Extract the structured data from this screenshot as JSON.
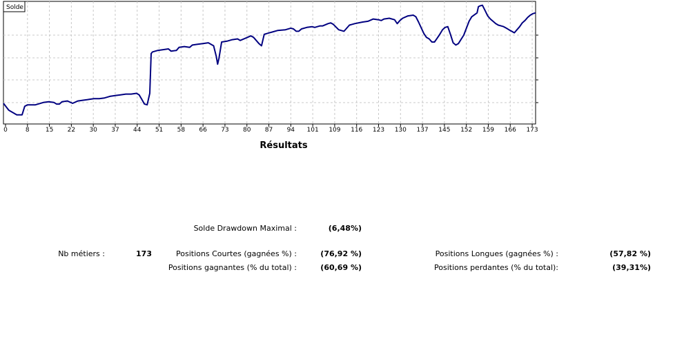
{
  "chart_data": {
    "type": "line",
    "series": [
      {
        "name": "Solde",
        "color": "#000080",
        "values": [
          [
            0,
            72
          ],
          [
            2,
            63
          ],
          [
            5,
            57
          ],
          [
            7,
            57
          ],
          [
            8,
            68
          ],
          [
            9,
            70
          ],
          [
            12,
            70
          ],
          [
            15,
            73
          ],
          [
            17,
            74
          ],
          [
            19,
            73
          ],
          [
            20,
            71
          ],
          [
            21,
            71
          ],
          [
            22,
            74
          ],
          [
            24,
            75
          ],
          [
            26,
            72
          ],
          [
            28,
            75
          ],
          [
            30,
            76
          ],
          [
            32,
            77
          ],
          [
            34,
            78
          ],
          [
            36,
            78
          ],
          [
            38,
            79
          ],
          [
            40,
            81
          ],
          [
            42,
            82
          ],
          [
            44,
            83
          ],
          [
            46,
            84
          ],
          [
            48,
            84
          ],
          [
            50,
            85
          ],
          [
            51,
            83
          ],
          [
            52,
            77
          ],
          [
            53,
            71
          ],
          [
            54,
            70
          ],
          [
            55,
            85
          ],
          [
            55.5,
            137
          ],
          [
            56,
            139
          ],
          [
            58,
            141
          ],
          [
            60,
            142
          ],
          [
            62,
            143
          ],
          [
            63,
            140
          ],
          [
            65,
            141
          ],
          [
            66,
            145
          ],
          [
            68,
            146
          ],
          [
            70,
            145
          ],
          [
            71,
            148
          ],
          [
            73,
            149
          ],
          [
            75,
            150
          ],
          [
            77,
            151
          ],
          [
            79,
            147
          ],
          [
            80,
            133
          ],
          [
            80.5,
            123
          ],
          [
            81,
            131
          ],
          [
            82,
            152
          ],
          [
            84,
            153
          ],
          [
            86,
            155
          ],
          [
            88,
            156
          ],
          [
            89,
            154
          ],
          [
            91,
            157
          ],
          [
            93,
            160
          ],
          [
            94,
            158
          ],
          [
            96,
            150
          ],
          [
            97,
            147
          ],
          [
            98,
            162
          ],
          [
            100,
            164
          ],
          [
            101,
            165
          ],
          [
            103,
            167
          ],
          [
            106,
            168
          ],
          [
            108,
            170
          ],
          [
            109,
            169
          ],
          [
            110,
            166
          ],
          [
            111,
            166
          ],
          [
            112,
            169
          ],
          [
            114,
            171
          ],
          [
            116,
            172
          ],
          [
            117,
            171
          ],
          [
            119,
            173
          ],
          [
            120,
            173
          ],
          [
            122,
            176
          ],
          [
            123,
            177
          ],
          [
            124,
            175
          ],
          [
            126,
            168
          ],
          [
            128,
            166
          ],
          [
            130,
            174
          ],
          [
            132,
            176
          ],
          [
            135,
            178
          ],
          [
            137,
            179
          ],
          [
            139,
            182
          ],
          [
            141,
            181
          ],
          [
            142,
            180
          ],
          [
            143,
            182
          ],
          [
            145,
            183
          ],
          [
            147,
            181
          ],
          [
            148,
            176
          ],
          [
            149,
            180
          ],
          [
            150,
            183
          ],
          [
            152,
            186
          ],
          [
            154,
            187
          ],
          [
            155,
            185
          ],
          [
            156,
            178
          ],
          [
            158,
            163
          ],
          [
            159,
            158
          ],
          [
            160,
            156
          ],
          [
            161,
            152
          ],
          [
            162,
            152
          ],
          [
            163,
            157
          ],
          [
            164,
            162
          ],
          [
            165,
            168
          ],
          [
            166,
            171
          ],
          [
            167,
            172
          ],
          [
            168,
            162
          ],
          [
            169,
            151
          ],
          [
            170,
            148
          ],
          [
            171,
            150
          ],
          [
            173,
            161
          ],
          [
            175,
            179
          ],
          [
            176,
            185
          ],
          [
            178,
            190
          ],
          [
            178.5,
            198
          ],
          [
            179,
            199
          ],
          [
            180,
            200
          ],
          [
            181,
            193
          ],
          [
            182,
            186
          ],
          [
            183,
            182
          ],
          [
            184,
            179
          ],
          [
            185,
            176
          ],
          [
            186,
            174
          ],
          [
            187,
            173
          ],
          [
            188,
            172
          ],
          [
            189,
            170
          ],
          [
            190,
            168
          ],
          [
            191,
            166
          ],
          [
            192,
            164
          ],
          [
            193,
            168
          ],
          [
            194,
            172
          ],
          [
            195,
            177
          ],
          [
            196,
            180
          ],
          [
            197,
            184
          ],
          [
            198,
            187
          ],
          [
            199,
            189
          ],
          [
            200,
            190
          ]
        ]
      }
    ],
    "x_ticks": [
      "0",
      "8",
      "15",
      "22",
      "30",
      "37",
      "44",
      "51",
      "58",
      "66",
      "73",
      "80",
      "87",
      "94",
      "101",
      "109",
      "116",
      "123",
      "130",
      "137",
      "145",
      "152",
      "159",
      "166",
      "173"
    ],
    "xlim": [
      0,
      200
    ],
    "ylim": [
      45,
      205
    ],
    "grid": true,
    "title": ""
  },
  "results": {
    "title": "Résultats",
    "max_drawdown_label": "Solde Drawdown Maximal :",
    "max_drawdown_value": "(6,48%)",
    "trades_label": "Nb métiers :",
    "trades_value": "173",
    "short_label": "Positions Courtes (gagnées %) :",
    "short_value": "(76,92 %)",
    "long_label": "Positions Longues (gagnées %) :",
    "long_value": "(57,82 %)",
    "profit_label": "Positions gagnantes (% du total) :",
    "profit_value": "(60,69 %)",
    "loss_label": "Positions perdantes (% du total):",
    "loss_value": "(39,31%)"
  }
}
